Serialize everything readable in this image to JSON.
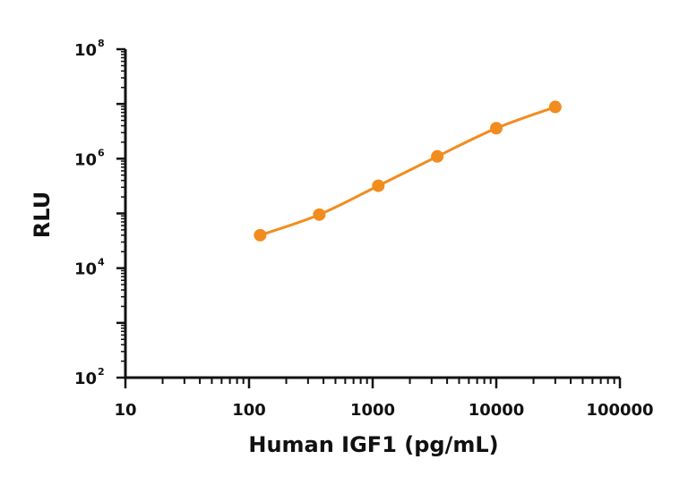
{
  "chart_data": {
    "type": "line",
    "title": "",
    "xlabel": "Human IGF1 (pg/mL)",
    "ylabel": "RLU",
    "xscale": "log",
    "yscale": "log",
    "xlim": [
      10,
      100000
    ],
    "ylim": [
      100,
      100000000
    ],
    "grid": false,
    "legend": "none",
    "x_ticks": [
      {
        "value": 10,
        "label": "10"
      },
      {
        "value": 100,
        "label": "100"
      },
      {
        "value": 1000,
        "label": "1000"
      },
      {
        "value": 10000,
        "label": "10000"
      },
      {
        "value": 100000,
        "label": "100000"
      }
    ],
    "y_ticks": [
      {
        "value": 100,
        "base": "10",
        "exp": "2"
      },
      {
        "value": 10000,
        "base": "10",
        "exp": "4"
      },
      {
        "value": 1000000,
        "base": "10",
        "exp": "6"
      },
      {
        "value": 100000000,
        "base": "10",
        "exp": "8"
      }
    ],
    "series": [
      {
        "color": "#F28C1E",
        "x": [
          123,
          370,
          1111,
          3333,
          10000,
          30000
        ],
        "y": [
          40000,
          95000,
          320000,
          1100000,
          3600000,
          8800000
        ]
      }
    ]
  }
}
